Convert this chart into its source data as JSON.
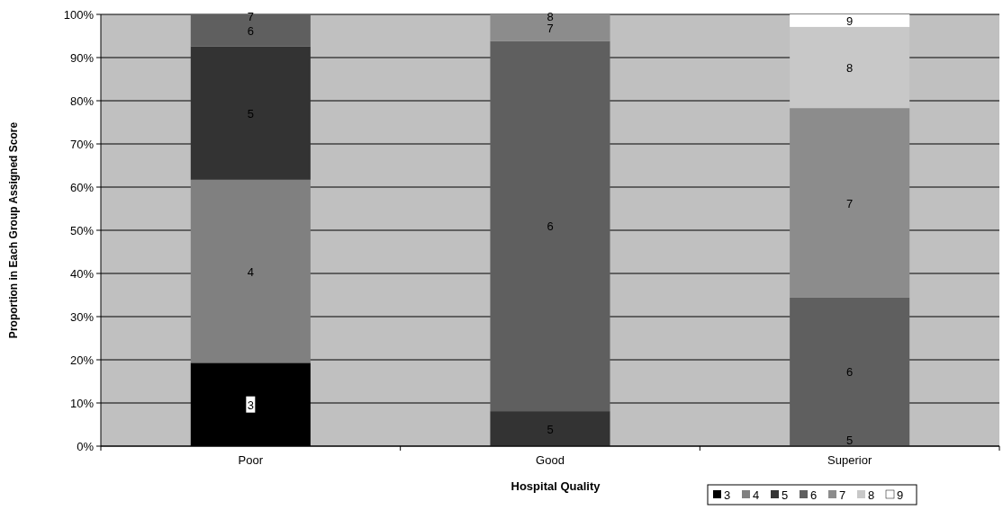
{
  "chart_data": {
    "type": "bar",
    "stacked": true,
    "xlabel": "Hospital Quality",
    "ylabel": "Proportion in Each Group Assigned Score",
    "categories": [
      "Poor",
      "Good",
      "Superior"
    ],
    "ylim": [
      0,
      100
    ],
    "yticks": [
      {
        "value": 0,
        "label": "0%"
      },
      {
        "value": 10,
        "label": "10%"
      },
      {
        "value": 20,
        "label": "20%"
      },
      {
        "value": 30,
        "label": "30%"
      },
      {
        "value": 40,
        "label": "40%"
      },
      {
        "value": 50,
        "label": "50%"
      },
      {
        "value": 60,
        "label": "60%"
      },
      {
        "value": 70,
        "label": "70%"
      },
      {
        "value": 80,
        "label": "80%"
      },
      {
        "value": 90,
        "label": "90%"
      },
      {
        "value": 100,
        "label": "100%"
      }
    ],
    "grid": "y",
    "legend": "bottom right",
    "series": [
      {
        "name": "3",
        "color": "#000000",
        "values": [
          19.3,
          null,
          null
        ]
      },
      {
        "name": "4",
        "color": "#808080",
        "values": [
          42.4,
          null,
          null
        ]
      },
      {
        "name": "5",
        "color": "#333333",
        "values": [
          30.9,
          8.1,
          0
        ]
      },
      {
        "name": "6",
        "color": "#5f5f5f",
        "values": [
          7.4,
          85.7,
          34.4
        ]
      },
      {
        "name": "7",
        "color": "#8c8c8c",
        "values": [
          0,
          6.2,
          43.9
        ]
      },
      {
        "name": "8",
        "color": "#c8c8c8",
        "values": [
          null,
          0,
          18.8
        ]
      },
      {
        "name": "9",
        "color": "#ffffff",
        "values": [
          null,
          null,
          2.9
        ]
      }
    ],
    "annotations": [
      "3",
      "4",
      "5",
      "6",
      "7",
      "5",
      "6",
      "7",
      "8",
      "5",
      "6",
      "7",
      "8",
      "9"
    ]
  }
}
